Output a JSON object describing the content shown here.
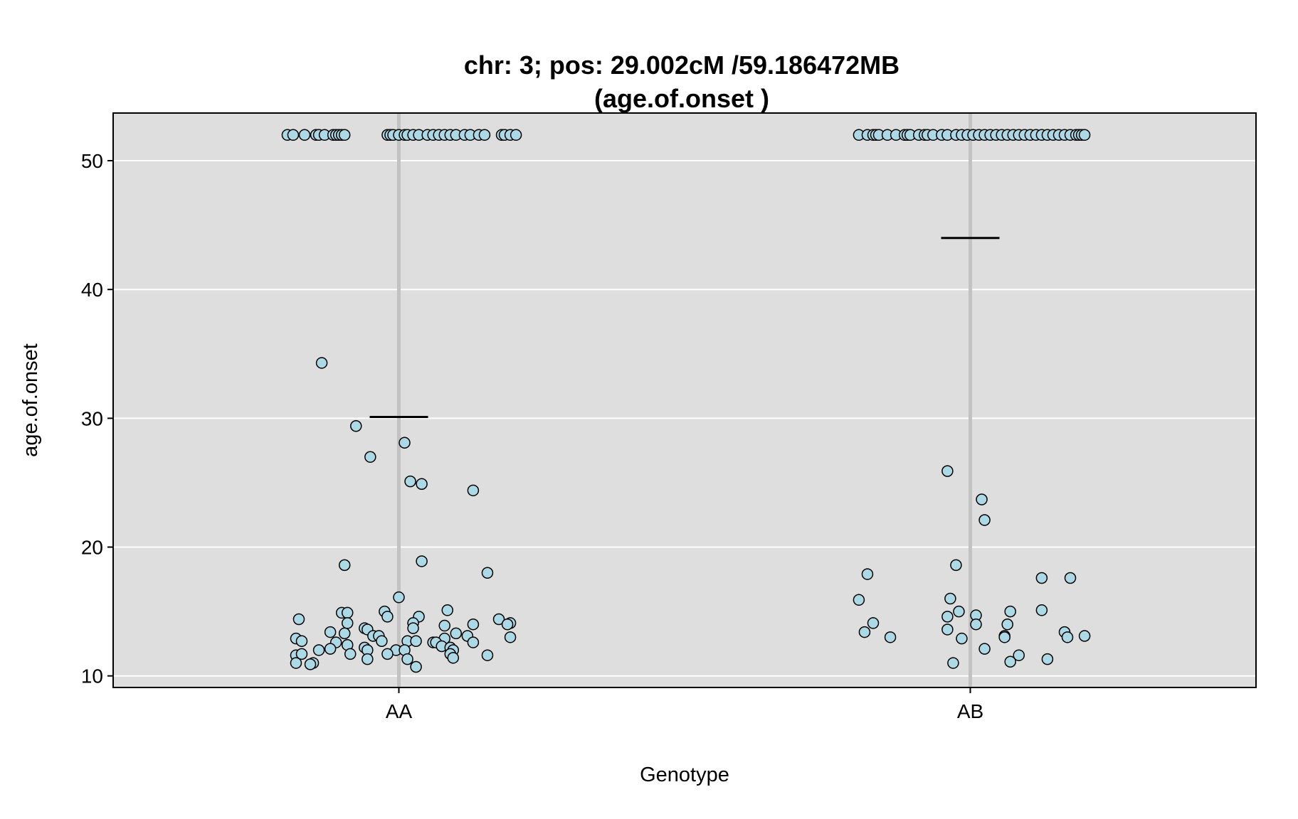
{
  "chart_data": {
    "type": "scatter",
    "title_lines": [
      "chr: 3; pos: 29.002cM /59.186472MB",
      "(age.of.onset )"
    ],
    "xlabel": "Genotype",
    "ylabel": "age.of.onset",
    "categories": [
      "AA",
      "AB"
    ],
    "ylim": [
      9.1,
      53.7
    ],
    "yticks": [
      10,
      20,
      30,
      40,
      50
    ],
    "grid": true,
    "colors": {
      "panel": "#dedede",
      "grid": "#ffffff",
      "center_line": "#c2c2c2",
      "point_fill": "#add8e6",
      "point_stroke": "#000000"
    },
    "means": [
      {
        "category": "AA",
        "value": 30.1
      },
      {
        "category": "AB",
        "value": 44.0
      }
    ],
    "series": [
      {
        "category": "AA",
        "points": [
          {
            "x": -0.39,
            "y": 52
          },
          {
            "x": -0.37,
            "y": 52
          },
          {
            "x": -0.33,
            "y": 52
          },
          {
            "x": -0.29,
            "y": 52
          },
          {
            "x": -0.28,
            "y": 52
          },
          {
            "x": -0.26,
            "y": 52
          },
          {
            "x": -0.23,
            "y": 52
          },
          {
            "x": -0.22,
            "y": 52
          },
          {
            "x": -0.21,
            "y": 52
          },
          {
            "x": -0.2,
            "y": 52
          },
          {
            "x": -0.19,
            "y": 52
          },
          {
            "x": -0.04,
            "y": 52
          },
          {
            "x": -0.03,
            "y": 52
          },
          {
            "x": -0.02,
            "y": 52
          },
          {
            "x": 0.0,
            "y": 52
          },
          {
            "x": 0.02,
            "y": 52
          },
          {
            "x": 0.03,
            "y": 52
          },
          {
            "x": 0.05,
            "y": 52
          },
          {
            "x": 0.07,
            "y": 52
          },
          {
            "x": 0.1,
            "y": 52
          },
          {
            "x": 0.12,
            "y": 52
          },
          {
            "x": 0.14,
            "y": 52
          },
          {
            "x": 0.16,
            "y": 52
          },
          {
            "x": 0.18,
            "y": 52
          },
          {
            "x": 0.2,
            "y": 52
          },
          {
            "x": 0.23,
            "y": 52
          },
          {
            "x": 0.25,
            "y": 52
          },
          {
            "x": 0.28,
            "y": 52
          },
          {
            "x": 0.3,
            "y": 52
          },
          {
            "x": 0.36,
            "y": 52
          },
          {
            "x": 0.37,
            "y": 52
          },
          {
            "x": 0.39,
            "y": 52
          },
          {
            "x": 0.41,
            "y": 52
          },
          {
            "x": -0.27,
            "y": 34.3
          },
          {
            "x": -0.15,
            "y": 29.4
          },
          {
            "x": 0.02,
            "y": 28.1
          },
          {
            "x": -0.1,
            "y": 27.0
          },
          {
            "x": 0.04,
            "y": 25.1
          },
          {
            "x": 0.08,
            "y": 24.9
          },
          {
            "x": 0.26,
            "y": 24.4
          },
          {
            "x": 0.08,
            "y": 18.9
          },
          {
            "x": -0.19,
            "y": 18.6
          },
          {
            "x": 0.31,
            "y": 18.0
          },
          {
            "x": 0.0,
            "y": 16.1
          },
          {
            "x": -0.2,
            "y": 14.9
          },
          {
            "x": -0.18,
            "y": 14.9
          },
          {
            "x": -0.05,
            "y": 15.0
          },
          {
            "x": 0.17,
            "y": 15.1
          },
          {
            "x": -0.35,
            "y": 14.4
          },
          {
            "x": 0.35,
            "y": 14.4
          },
          {
            "x": -0.04,
            "y": 14.6
          },
          {
            "x": 0.07,
            "y": 14.6
          },
          {
            "x": -0.18,
            "y": 14.1
          },
          {
            "x": 0.05,
            "y": 14.1
          },
          {
            "x": 0.26,
            "y": 14.0
          },
          {
            "x": 0.39,
            "y": 14.1
          },
          {
            "x": 0.38,
            "y": 14.0
          },
          {
            "x": 0.16,
            "y": 13.9
          },
          {
            "x": 0.05,
            "y": 13.7
          },
          {
            "x": -0.12,
            "y": 13.7
          },
          {
            "x": -0.11,
            "y": 13.6
          },
          {
            "x": -0.24,
            "y": 13.4
          },
          {
            "x": -0.19,
            "y": 13.3
          },
          {
            "x": 0.2,
            "y": 13.3
          },
          {
            "x": -0.09,
            "y": 13.1
          },
          {
            "x": 0.24,
            "y": 13.1
          },
          {
            "x": -0.36,
            "y": 12.9
          },
          {
            "x": -0.07,
            "y": 13.1
          },
          {
            "x": 0.16,
            "y": 12.9
          },
          {
            "x": 0.39,
            "y": 13.0
          },
          {
            "x": -0.34,
            "y": 12.7
          },
          {
            "x": -0.22,
            "y": 12.6
          },
          {
            "x": -0.06,
            "y": 12.7
          },
          {
            "x": 0.03,
            "y": 12.7
          },
          {
            "x": 0.06,
            "y": 12.7
          },
          {
            "x": 0.12,
            "y": 12.6
          },
          {
            "x": 0.13,
            "y": 12.6
          },
          {
            "x": 0.26,
            "y": 12.6
          },
          {
            "x": -0.18,
            "y": 12.4
          },
          {
            "x": -0.12,
            "y": 12.2
          },
          {
            "x": 0.15,
            "y": 12.3
          },
          {
            "x": 0.18,
            "y": 12.2
          },
          {
            "x": -0.28,
            "y": 12.0
          },
          {
            "x": -0.24,
            "y": 12.1
          },
          {
            "x": -0.11,
            "y": 12.0
          },
          {
            "x": -0.01,
            "y": 12.0
          },
          {
            "x": 0.02,
            "y": 12.0
          },
          {
            "x": 0.19,
            "y": 12.0
          },
          {
            "x": -0.36,
            "y": 11.6
          },
          {
            "x": -0.34,
            "y": 11.7
          },
          {
            "x": -0.17,
            "y": 11.7
          },
          {
            "x": -0.04,
            "y": 11.7
          },
          {
            "x": 0.18,
            "y": 11.7
          },
          {
            "x": 0.19,
            "y": 11.4
          },
          {
            "x": 0.31,
            "y": 11.6
          },
          {
            "x": -0.11,
            "y": 11.3
          },
          {
            "x": 0.03,
            "y": 11.3
          },
          {
            "x": -0.36,
            "y": 11.0
          },
          {
            "x": -0.3,
            "y": 11.0
          },
          {
            "x": -0.31,
            "y": 10.9
          },
          {
            "x": 0.06,
            "y": 10.7
          }
        ]
      },
      {
        "category": "AB",
        "points": [
          {
            "x": -0.39,
            "y": 52
          },
          {
            "x": -0.36,
            "y": 52
          },
          {
            "x": -0.34,
            "y": 52
          },
          {
            "x": -0.33,
            "y": 52
          },
          {
            "x": -0.32,
            "y": 52
          },
          {
            "x": -0.29,
            "y": 52
          },
          {
            "x": -0.26,
            "y": 52
          },
          {
            "x": -0.23,
            "y": 52
          },
          {
            "x": -0.22,
            "y": 52
          },
          {
            "x": -0.21,
            "y": 52
          },
          {
            "x": -0.18,
            "y": 52
          },
          {
            "x": -0.16,
            "y": 52
          },
          {
            "x": -0.15,
            "y": 52
          },
          {
            "x": -0.13,
            "y": 52
          },
          {
            "x": -0.1,
            "y": 52
          },
          {
            "x": -0.08,
            "y": 52
          },
          {
            "x": -0.05,
            "y": 52
          },
          {
            "x": -0.03,
            "y": 52
          },
          {
            "x": -0.01,
            "y": 52
          },
          {
            "x": 0.01,
            "y": 52
          },
          {
            "x": 0.03,
            "y": 52
          },
          {
            "x": 0.05,
            "y": 52
          },
          {
            "x": 0.07,
            "y": 52
          },
          {
            "x": 0.09,
            "y": 52
          },
          {
            "x": 0.11,
            "y": 52
          },
          {
            "x": 0.13,
            "y": 52
          },
          {
            "x": 0.15,
            "y": 52
          },
          {
            "x": 0.17,
            "y": 52
          },
          {
            "x": 0.19,
            "y": 52
          },
          {
            "x": 0.21,
            "y": 52
          },
          {
            "x": 0.23,
            "y": 52
          },
          {
            "x": 0.25,
            "y": 52
          },
          {
            "x": 0.27,
            "y": 52
          },
          {
            "x": 0.29,
            "y": 52
          },
          {
            "x": 0.31,
            "y": 52
          },
          {
            "x": 0.33,
            "y": 52
          },
          {
            "x": 0.35,
            "y": 52
          },
          {
            "x": 0.37,
            "y": 52
          },
          {
            "x": 0.38,
            "y": 52
          },
          {
            "x": 0.39,
            "y": 52
          },
          {
            "x": 0.4,
            "y": 52
          },
          {
            "x": -0.08,
            "y": 25.9
          },
          {
            "x": 0.04,
            "y": 23.7
          },
          {
            "x": 0.05,
            "y": 22.1
          },
          {
            "x": -0.05,
            "y": 18.6
          },
          {
            "x": -0.36,
            "y": 17.9
          },
          {
            "x": 0.25,
            "y": 17.6
          },
          {
            "x": 0.35,
            "y": 17.6
          },
          {
            "x": -0.39,
            "y": 15.9
          },
          {
            "x": -0.07,
            "y": 16.0
          },
          {
            "x": -0.04,
            "y": 15.0
          },
          {
            "x": 0.14,
            "y": 15.0
          },
          {
            "x": 0.25,
            "y": 15.1
          },
          {
            "x": -0.08,
            "y": 14.6
          },
          {
            "x": 0.02,
            "y": 14.7
          },
          {
            "x": -0.34,
            "y": 14.1
          },
          {
            "x": 0.02,
            "y": 14.0
          },
          {
            "x": 0.13,
            "y": 14.0
          },
          {
            "x": -0.08,
            "y": 13.6
          },
          {
            "x": -0.37,
            "y": 13.4
          },
          {
            "x": 0.33,
            "y": 13.4
          },
          {
            "x": -0.28,
            "y": 13.0
          },
          {
            "x": -0.03,
            "y": 12.9
          },
          {
            "x": 0.12,
            "y": 13.1
          },
          {
            "x": 0.12,
            "y": 13.0
          },
          {
            "x": 0.34,
            "y": 13.0
          },
          {
            "x": 0.4,
            "y": 13.1
          },
          {
            "x": 0.05,
            "y": 12.1
          },
          {
            "x": 0.17,
            "y": 11.6
          },
          {
            "x": 0.27,
            "y": 11.3
          },
          {
            "x": -0.06,
            "y": 11.0
          },
          {
            "x": 0.14,
            "y": 11.1
          }
        ]
      }
    ]
  }
}
